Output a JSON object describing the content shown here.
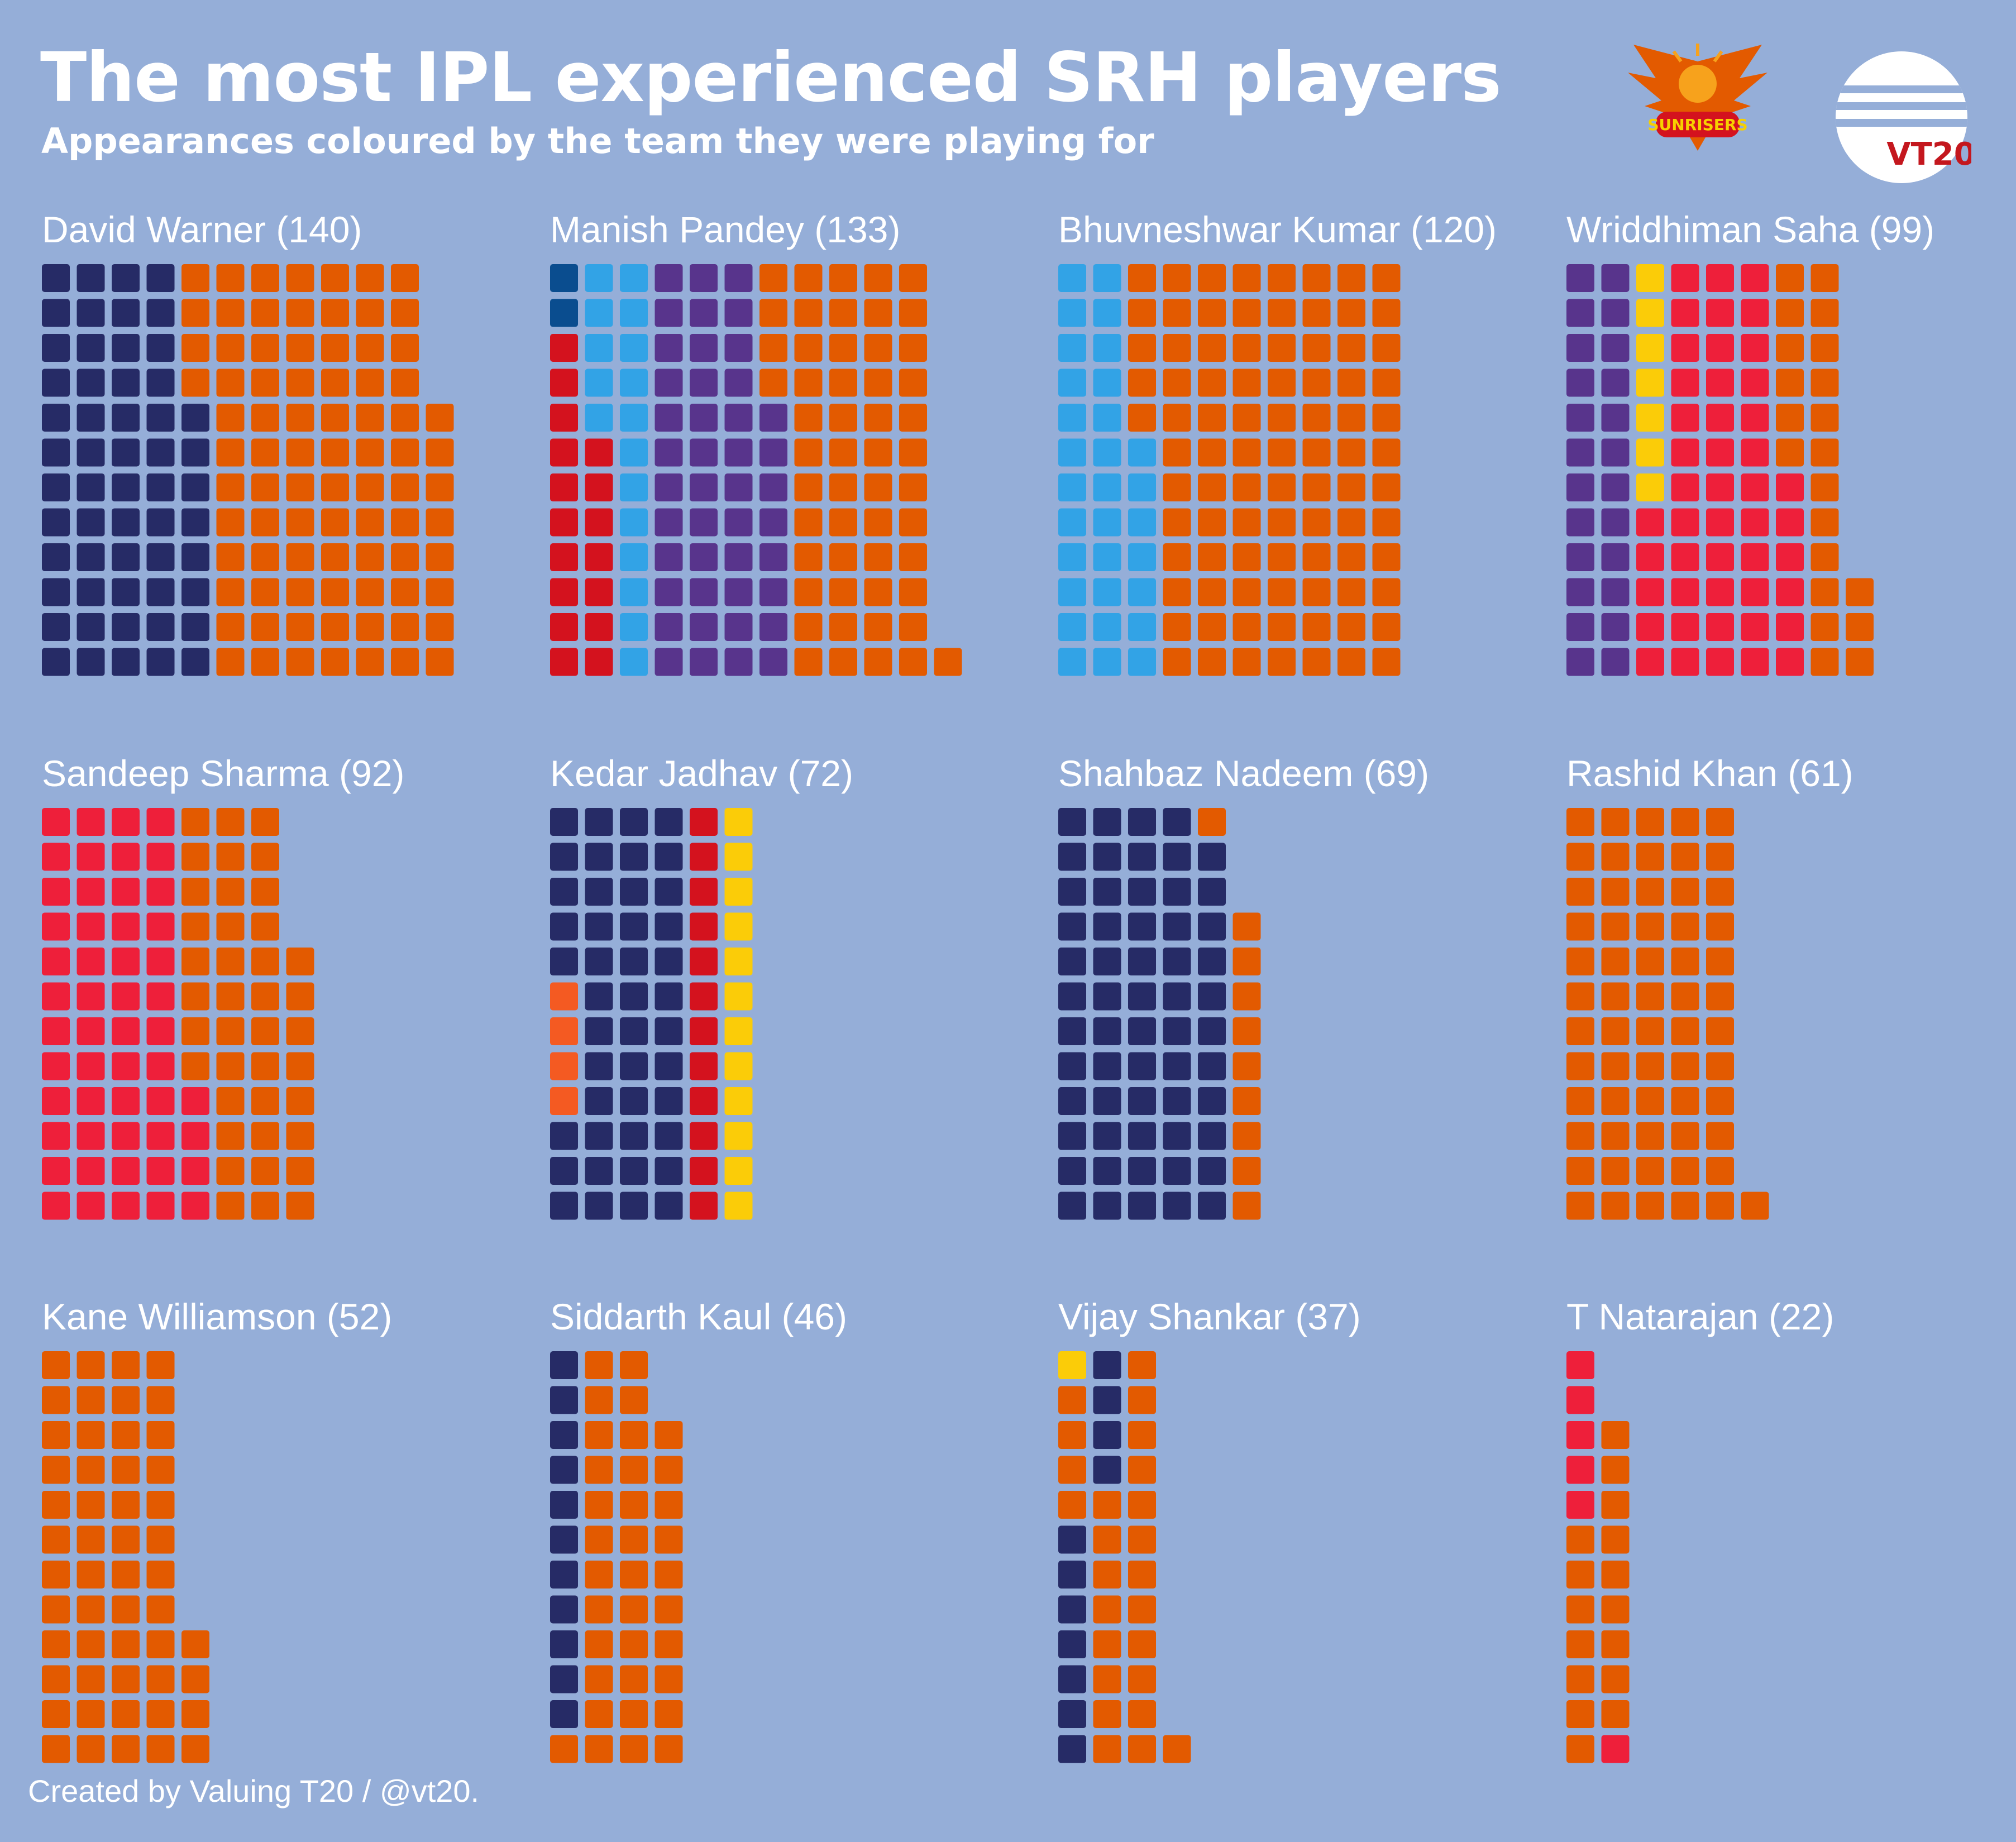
{
  "title": "The most IPL experienced SRH players",
  "subtitle": "Appearances coloured by the team they were playing for",
  "footer": "Created by Valuing T20 / @vt20.",
  "logos": {
    "sunrisers": {
      "icon": "sunrisers-hyderabad-logo",
      "text": "SUNRISERS"
    },
    "vt20": {
      "icon": "valuing-t20-logo",
      "text": "VT20"
    }
  },
  "colors": {
    "background": "#95aed8",
    "srh": "#e35a00",
    "dc_navy": "#262b66",
    "rcb_red": "#d4121e",
    "mi_blue": "#32a3e6",
    "kkr_purple": "#58348c",
    "kxip_red": "#ee1f3a",
    "csk_yellow": "#fbcc08",
    "dd_blue": "#0a4d8f",
    "gl_orange": "#f45a22"
  },
  "chart_data": {
    "type": "waffle",
    "title": "The most IPL experienced SRH players",
    "subtitle": "Appearances coloured by the team they were playing for",
    "rows_per_column": 12,
    "players": [
      {
        "name": "David Warner",
        "label": "David Warner (140)",
        "appearances": 140,
        "segments": [
          {
            "color": "dc_navy",
            "count": 56
          },
          {
            "color": "srh",
            "count": 84
          }
        ]
      },
      {
        "name": "Manish Pandey",
        "label": "Manish Pandey (133)",
        "appearances": 133,
        "segments": [
          {
            "color": "rcb_red",
            "count": 10
          },
          {
            "color": "dd_blue",
            "count": 2
          },
          {
            "color": "rcb_red",
            "count": 7
          },
          {
            "color": "mi_blue",
            "count": 17
          },
          {
            "color": "kkr_purple",
            "count": 44
          },
          {
            "color": "srh",
            "count": 53
          }
        ]
      },
      {
        "name": "Bhuvneshwar Kumar",
        "label": "Bhuvneshwar Kumar (120)",
        "appearances": 120,
        "segments": [
          {
            "color": "mi_blue",
            "count": 31
          },
          {
            "color": "srh",
            "count": 89
          }
        ]
      },
      {
        "name": "Wriddhiman Saha",
        "label": "Wriddhiman Saha (99)",
        "appearances": 99,
        "segments": [
          {
            "color": "kkr_purple",
            "count": 24
          },
          {
            "color": "kxip_red",
            "count": 5
          },
          {
            "color": "csk_yellow",
            "count": 7
          },
          {
            "color": "kxip_red",
            "count": 42
          },
          {
            "color": "srh",
            "count": 21
          }
        ]
      },
      {
        "name": "Sandeep Sharma",
        "label": "Sandeep Sharma (92)",
        "appearances": 92,
        "segments": [
          {
            "color": "kxip_red",
            "count": 52
          },
          {
            "color": "srh",
            "count": 40
          }
        ]
      },
      {
        "name": "Kedar Jadhav",
        "label": "Kedar Jadhav (72)",
        "appearances": 72,
        "segments": [
          {
            "color": "dc_navy",
            "count": 3
          },
          {
            "color": "gl_orange",
            "count": 4
          },
          {
            "color": "dc_navy",
            "count": 41
          },
          {
            "color": "rcb_red",
            "count": 12
          },
          {
            "color": "csk_yellow",
            "count": 12
          }
        ]
      },
      {
        "name": "Shahbaz Nadeem",
        "label": "Shahbaz Nadeem (69)",
        "appearances": 69,
        "segments": [
          {
            "color": "dc_navy",
            "count": 59
          },
          {
            "color": "srh",
            "count": 10
          }
        ]
      },
      {
        "name": "Rashid Khan",
        "label": "Rashid Khan (61)",
        "appearances": 61,
        "segments": [
          {
            "color": "srh",
            "count": 61
          }
        ]
      },
      {
        "name": "Kane Williamson",
        "label": "Kane Williamson (52)",
        "appearances": 52,
        "segments": [
          {
            "color": "srh",
            "count": 52
          }
        ]
      },
      {
        "name": "Siddarth Kaul",
        "label": "Siddarth Kaul (46)",
        "appearances": 46,
        "segments": [
          {
            "color": "srh",
            "count": 1
          },
          {
            "color": "dc_navy",
            "count": 11
          },
          {
            "color": "srh",
            "count": 34
          }
        ]
      },
      {
        "name": "Vijay Shankar",
        "label": "Vijay Shankar (37)",
        "appearances": 37,
        "segments": [
          {
            "color": "dc_navy",
            "count": 7
          },
          {
            "color": "srh",
            "count": 4
          },
          {
            "color": "csk_yellow",
            "count": 1
          },
          {
            "color": "srh",
            "count": 8
          },
          {
            "color": "dc_navy",
            "count": 4
          },
          {
            "color": "srh",
            "count": 13
          }
        ]
      },
      {
        "name": "T Natarajan",
        "label": "T Natarajan (22)",
        "appearances": 22,
        "segments": [
          {
            "color": "srh",
            "count": 7
          },
          {
            "color": "kxip_red",
            "count": 6
          },
          {
            "color": "srh",
            "count": 9
          }
        ]
      }
    ]
  }
}
